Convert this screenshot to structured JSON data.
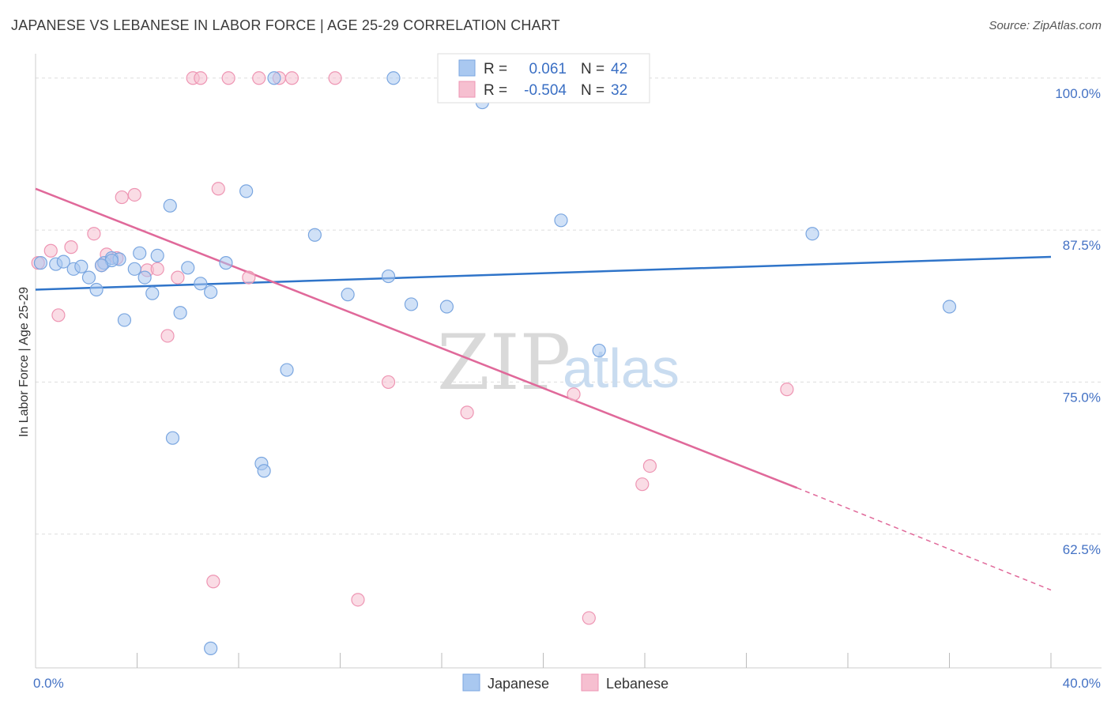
{
  "title": "JAPANESE VS LEBANESE IN LABOR FORCE | AGE 25-29 CORRELATION CHART",
  "source": "Source: ZipAtlas.com",
  "watermark": {
    "zip": "ZIP",
    "atlas": "atlas"
  },
  "colors": {
    "japanese_fill": "#a9c8f0",
    "japanese_stroke": "#7aa6e0",
    "japanese_line": "#2f74c9",
    "lebanese_fill": "#f6bfd0",
    "lebanese_stroke": "#ee95b3",
    "lebanese_line": "#e0699a",
    "grid": "#dddddd",
    "tick_label": "#4472c4"
  },
  "legend": {
    "japanese": {
      "r_label": "R =",
      "r_value": "0.061",
      "n_label": "N =",
      "n_value": "42"
    },
    "lebanese": {
      "r_label": "R =",
      "r_value": "-0.504",
      "n_label": "N =",
      "n_value": "32"
    }
  },
  "bottom_legend": [
    "Japanese",
    "Lebanese"
  ],
  "chart_data": {
    "type": "scatter",
    "title": "JAPANESE VS LEBANESE IN LABOR FORCE | AGE 25-29 CORRELATION CHART",
    "xlabel": "",
    "ylabel": "In Labor Force | Age 25-29",
    "xlim": [
      0,
      40
    ],
    "ylim": [
      51.5,
      102
    ],
    "x_tick_labels": [
      "0.0%",
      "40.0%"
    ],
    "y_ticks": [
      100,
      87.5,
      75,
      62.5
    ],
    "y_tick_labels": [
      "100.0%",
      "87.5%",
      "75.0%",
      "62.5%"
    ],
    "series": [
      {
        "name": "Japanese",
        "r": 0.061,
        "n": 42,
        "trend": {
          "x": [
            0,
            40
          ],
          "y": [
            82.6,
            85.3
          ]
        },
        "points": [
          [
            0.2,
            84.8
          ],
          [
            0.8,
            84.7
          ],
          [
            1.1,
            84.9
          ],
          [
            1.5,
            84.3
          ],
          [
            1.8,
            84.5
          ],
          [
            2.1,
            83.6
          ],
          [
            2.4,
            82.6
          ],
          [
            2.7,
            84.8
          ],
          [
            3.0,
            85.2
          ],
          [
            3.3,
            85.1
          ],
          [
            3.5,
            80.1
          ],
          [
            3.9,
            84.3
          ],
          [
            4.1,
            85.6
          ],
          [
            4.3,
            83.6
          ],
          [
            4.6,
            82.3
          ],
          [
            4.8,
            85.4
          ],
          [
            5.3,
            89.5
          ],
          [
            5.7,
            80.7
          ],
          [
            6.0,
            84.4
          ],
          [
            6.5,
            83.1
          ],
          [
            6.9,
            82.4
          ],
          [
            7.5,
            84.8
          ],
          [
            8.3,
            90.7
          ],
          [
            8.9,
            68.3
          ],
          [
            9.0,
            67.7
          ],
          [
            9.4,
            100
          ],
          [
            9.9,
            76.0
          ],
          [
            11.0,
            87.1
          ],
          [
            12.3,
            82.2
          ],
          [
            13.9,
            83.7
          ],
          [
            14.1,
            100
          ],
          [
            14.8,
            81.4
          ],
          [
            16.2,
            81.2
          ],
          [
            17.6,
            98
          ],
          [
            20.7,
            88.3
          ],
          [
            22.2,
            77.6
          ],
          [
            30.6,
            87.2
          ],
          [
            36.0,
            81.2
          ],
          [
            5.4,
            70.4
          ],
          [
            6.9,
            53.1
          ],
          [
            3.0,
            85.0
          ],
          [
            2.6,
            84.6
          ]
        ]
      },
      {
        "name": "Lebanese",
        "r": -0.504,
        "n": 32,
        "trend": {
          "x": [
            0,
            30
          ],
          "y": [
            90.9,
            66.3
          ]
        },
        "trend_dashed": {
          "x": [
            30,
            40
          ],
          "y": [
            66.3,
            57.9
          ]
        },
        "points": [
          [
            0.1,
            84.8
          ],
          [
            0.6,
            85.8
          ],
          [
            1.4,
            86.1
          ],
          [
            2.3,
            87.2
          ],
          [
            2.6,
            84.6
          ],
          [
            2.8,
            85.5
          ],
          [
            3.2,
            85.2
          ],
          [
            3.4,
            90.2
          ],
          [
            3.9,
            90.4
          ],
          [
            4.4,
            84.2
          ],
          [
            4.8,
            84.3
          ],
          [
            5.2,
            78.8
          ],
          [
            5.6,
            83.6
          ],
          [
            6.2,
            100
          ],
          [
            6.5,
            100
          ],
          [
            7.0,
            58.6
          ],
          [
            7.2,
            90.9
          ],
          [
            7.6,
            100
          ],
          [
            8.4,
            83.6
          ],
          [
            8.8,
            100
          ],
          [
            9.6,
            100
          ],
          [
            10.1,
            100
          ],
          [
            11.8,
            100
          ],
          [
            12.7,
            57.1
          ],
          [
            13.9,
            75.0
          ],
          [
            17.0,
            72.5
          ],
          [
            21.2,
            74.0
          ],
          [
            21.8,
            55.6
          ],
          [
            23.9,
            66.6
          ],
          [
            24.2,
            68.1
          ],
          [
            29.6,
            74.4
          ],
          [
            0.9,
            80.5
          ]
        ]
      }
    ]
  }
}
